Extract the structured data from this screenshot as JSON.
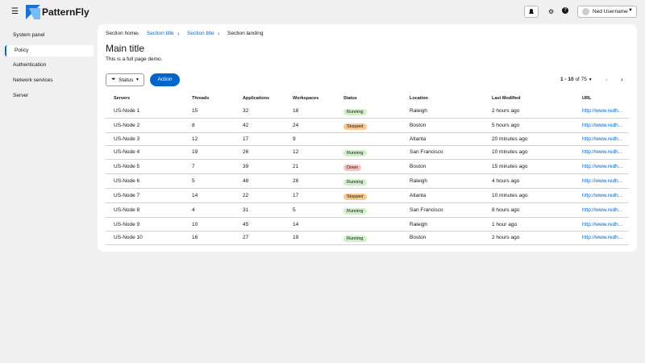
{
  "header": {
    "brand": "PatternFly",
    "user": "Ned Username"
  },
  "nav": [
    "System panel",
    "Policy",
    "Authentication",
    "Network services",
    "Server"
  ],
  "breadcrumb": [
    "Section home",
    "Section title",
    "Section title",
    "Section landing"
  ],
  "page": {
    "title": "Main title",
    "description": "This is a full page demo."
  },
  "toolbar": {
    "filter": "Status",
    "action": "Action",
    "range": "1 - 10",
    "total": "of 75"
  },
  "table": {
    "columns": [
      "Servers",
      "Threads",
      "Applications",
      "Workspaces",
      "Status",
      "Location",
      "Last Modified",
      "URL"
    ],
    "rows": [
      [
        "US-Node 1",
        15,
        32,
        18,
        "Running",
        "Raleigh",
        "2 hours ago",
        "http://www.redh..."
      ],
      [
        "US-Node 2",
        8,
        42,
        24,
        "Stopped",
        "Boston",
        "5 hours ago",
        "http://www.redh..."
      ],
      [
        "US-Node 3",
        12,
        17,
        9,
        null,
        "Atlanta",
        "20 minutes ago",
        "http://www.redh..."
      ],
      [
        "US-Node 4",
        19,
        26,
        12,
        "Running",
        "San Francisco",
        "10 minutes ago",
        "http://www.redh..."
      ],
      [
        "US-Node 5",
        7,
        39,
        21,
        "Down",
        "Boston",
        "15 minutes ago",
        "http://www.redh..."
      ],
      [
        "US-Node 6",
        5,
        48,
        28,
        "Running",
        "Raleigh",
        "4 hours ago",
        "http://www.redh..."
      ],
      [
        "US-Node 7",
        14,
        22,
        17,
        "Stopped",
        "Atlanta",
        "10 minutes ago",
        "http://www.redh..."
      ],
      [
        "US-Node 8",
        4,
        31,
        5,
        "Running",
        "San Francisco",
        "8 hours ago",
        "http://www.redh..."
      ],
      [
        "US-Node 9",
        10,
        45,
        14,
        null,
        "Raleigh",
        "1 hour ago",
        "http://www.redh..."
      ],
      [
        "US-Node 10",
        16,
        27,
        19,
        "Running",
        "Boston",
        "2 hours ago",
        "http://www.redh..."
      ]
    ]
  }
}
